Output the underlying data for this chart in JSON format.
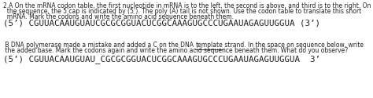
{
  "background_color": "#ffffff",
  "header_line1": "2.A On the mRNA codon table, the first nucleotide in mRNA is to the left, the second is above, and third is to the right. On",
  "header_line2": "  the sequence, the 5’cap is indicated by (5’). The poly (A) tail is not shown. Use the codon table to translate this short",
  "header_line3": "  mRNA. Mark the codons and write the amino acid sequence beneath them.",
  "sequence_a": "(5’) CGUUACAAUGUAUCGCGCGGUACUCGGCAAAGUGCCCUGAAUAGAGUUGGUA (3’)",
  "section_b_line1": " B DNA polymerase made a mistake and added a C on the DNA template strand. In the space on sequence below, write",
  "section_b_line2": " the added base. Mark the codons again and write the amino acid sequence beneath them. What do you observe?",
  "section_b_template_word": "template",
  "sequence_b": "(5’) CGUUACAAUGUAU_CGCGCGGUACUCGGCAAAGUGCCCUGAAUAGAGUUGGUA  3’",
  "text_color": "#222222",
  "header_fontsize": 5.5,
  "sequence_fontsize": 7.8,
  "section_b_fontsize": 5.5,
  "sequence_b_fontsize": 7.8
}
